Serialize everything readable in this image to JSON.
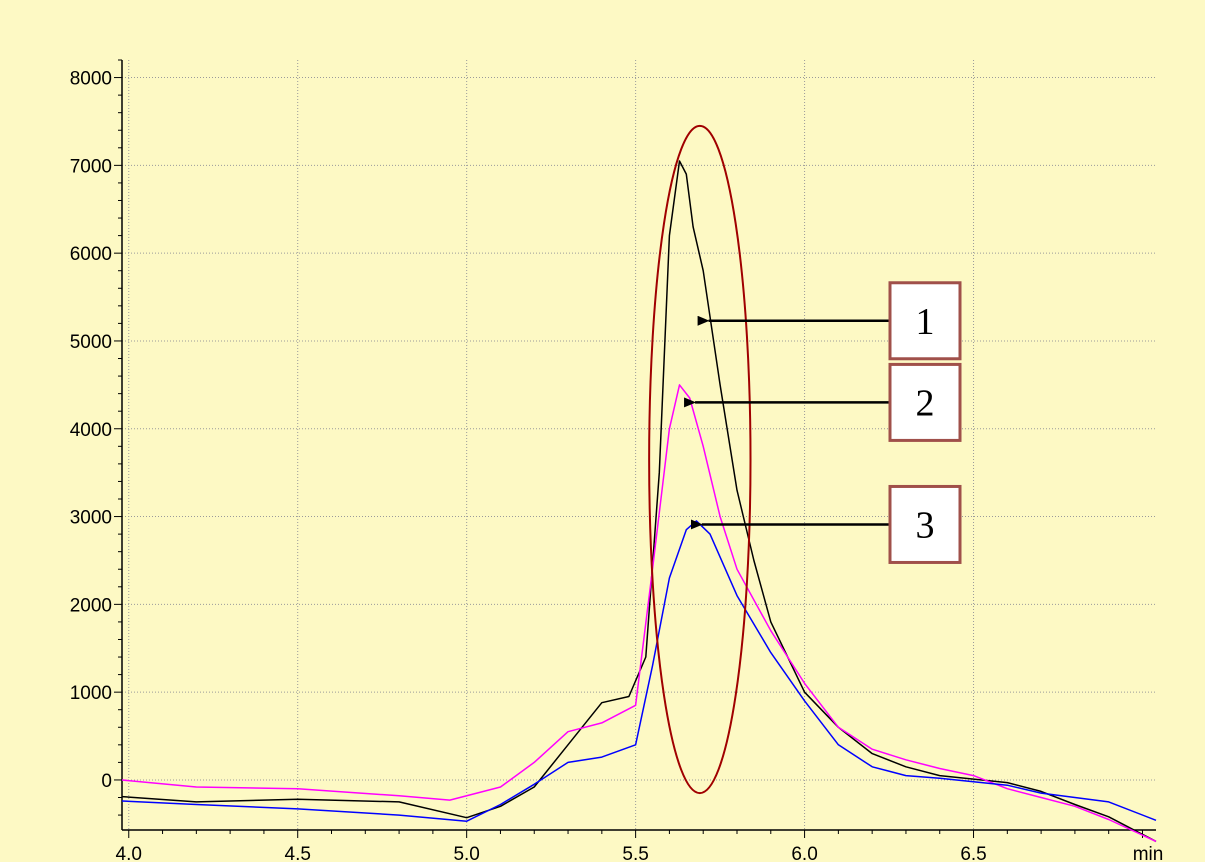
{
  "chart_data": {
    "type": "line",
    "title": "",
    "xlabel": "",
    "ylabel": "",
    "x_unit_label": "min",
    "xlim": [
      3.98,
      7.04
    ],
    "ylim": [
      -570,
      8200
    ],
    "xticks": [
      4.0,
      4.5,
      5.0,
      5.5,
      6.0,
      6.5
    ],
    "xtick_labels": [
      "4.0",
      "4.5",
      "5.0",
      "5.5",
      "6.0",
      "6.5"
    ],
    "yticks": [
      0,
      1000,
      2000,
      3000,
      4000,
      5000,
      6000,
      7000,
      8000
    ],
    "ytick_labels": [
      "0",
      "1000",
      "2000",
      "3000",
      "4000",
      "5000",
      "6000",
      "7000",
      "8000"
    ],
    "grid": true,
    "series": [
      {
        "color": "#000000",
        "x": [
          3.98,
          4.2,
          4.5,
          4.8,
          5.0,
          5.1,
          5.2,
          5.3,
          5.4,
          5.48,
          5.53,
          5.57,
          5.6,
          5.63,
          5.65,
          5.67,
          5.7,
          5.75,
          5.8,
          5.85,
          5.9,
          6.0,
          6.1,
          6.2,
          6.3,
          6.4,
          6.5,
          6.6,
          6.7,
          6.8,
          6.9,
          7.04
        ],
        "y": [
          -190,
          -250,
          -220,
          -250,
          -430,
          -300,
          -80,
          400,
          880,
          950,
          1400,
          3500,
          6200,
          7050,
          6900,
          6300,
          5800,
          4500,
          3300,
          2500,
          1800,
          1000,
          600,
          300,
          150,
          50,
          10,
          -30,
          -130,
          -280,
          -420,
          -700
        ]
      },
      {
        "color": "#ff00ff",
        "x": [
          3.98,
          4.2,
          4.5,
          4.8,
          4.95,
          5.1,
          5.2,
          5.3,
          5.4,
          5.5,
          5.55,
          5.6,
          5.63,
          5.66,
          5.7,
          5.75,
          5.8,
          5.9,
          6.0,
          6.1,
          6.2,
          6.3,
          6.4,
          6.5,
          6.6,
          6.7,
          6.8,
          6.9,
          7.04
        ],
        "y": [
          0,
          -80,
          -100,
          -180,
          -230,
          -80,
          200,
          550,
          650,
          850,
          2400,
          4000,
          4500,
          4350,
          3800,
          3000,
          2400,
          1700,
          1100,
          600,
          350,
          230,
          130,
          50,
          -100,
          -200,
          -300,
          -450,
          -700
        ]
      },
      {
        "color": "#0000ff",
        "x": [
          3.98,
          4.2,
          4.5,
          4.8,
          5.0,
          5.1,
          5.2,
          5.3,
          5.4,
          5.5,
          5.55,
          5.6,
          5.65,
          5.68,
          5.72,
          5.8,
          5.9,
          6.0,
          6.1,
          6.2,
          6.3,
          6.4,
          6.5,
          6.6,
          6.7,
          6.8,
          6.9,
          7.04
        ],
        "y": [
          -240,
          -280,
          -330,
          -400,
          -470,
          -280,
          -50,
          200,
          260,
          400,
          1300,
          2300,
          2850,
          2950,
          2800,
          2100,
          1450,
          900,
          400,
          150,
          50,
          20,
          -20,
          -60,
          -150,
          -200,
          -250,
          -460
        ]
      }
    ],
    "annotations": [
      {
        "label": "1",
        "x": 5.71,
        "y": 5230,
        "color": "#000000"
      },
      {
        "label": "2",
        "x": 5.67,
        "y": 4300,
        "color": "#000000"
      },
      {
        "label": "3",
        "x": 5.69,
        "y": 2910,
        "color": "#000000"
      }
    ],
    "highlight_ellipse": {
      "cx": 5.69,
      "cy": 3650,
      "rx": 0.15,
      "ry": 3800,
      "color": "#a00000"
    }
  }
}
